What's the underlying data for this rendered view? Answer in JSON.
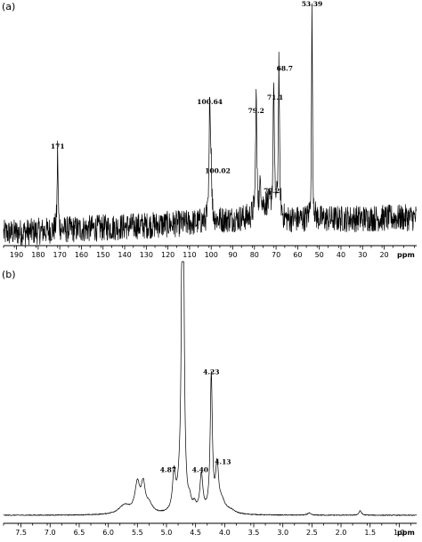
{
  "chart_data": [
    {
      "type": "line",
      "panel_label": "(a)",
      "xlabel": "ppm",
      "x_reversed": true,
      "xlim": [
        196,
        5
      ],
      "ylim": [
        0,
        100
      ],
      "x_ticks": [
        190,
        180,
        170,
        160,
        150,
        140,
        130,
        120,
        110,
        100,
        90,
        80,
        70,
        60,
        50,
        40,
        30,
        20
      ],
      "baseline": 4,
      "noise": 6,
      "drift": [
        {
          "x": 196,
          "y": 0
        },
        {
          "x": 110,
          "y": 4.5
        },
        {
          "x": 82,
          "y": 7
        },
        {
          "x": 74,
          "y": 13
        },
        {
          "x": 66,
          "y": 6
        },
        {
          "x": 5,
          "y": 7
        }
      ],
      "series": [
        {
          "peaks": [
            {
              "x": 171,
              "height": 37,
              "width": 0.25
            },
            {
              "x": 100.64,
              "height": 57,
              "width": 0.3
            },
            {
              "x": 100.02,
              "height": 24,
              "width": 0.3
            },
            {
              "x": 79.2,
              "height": 54,
              "width": 0.3
            },
            {
              "x": 77.2,
              "height": 12,
              "width": 0.4
            },
            {
              "x": 71.1,
              "height": 58,
              "width": 0.3
            },
            {
              "x": 68.7,
              "height": 69,
              "width": 0.3
            },
            {
              "x": 53.39,
              "height": 98,
              "width": 0.25
            }
          ]
        }
      ],
      "annotations": [
        {
          "text": "171",
          "x": 171,
          "y": 42
        },
        {
          "text": "100.64",
          "x": 100.64,
          "y": 62
        },
        {
          "text": "100.02",
          "x": 97,
          "y": 31
        },
        {
          "text": "79.2",
          "x": 79.2,
          "y": 58
        },
        {
          "text": "77.2",
          "x": 72,
          "y": 22
        },
        {
          "text": "71.1",
          "x": 70.4,
          "y": 64
        },
        {
          "text": "68.7",
          "x": 66,
          "y": 77
        },
        {
          "text": "53.39",
          "x": 53.39,
          "y": 106
        }
      ]
    },
    {
      "type": "line",
      "panel_label": "(b)",
      "xlabel": "ppm",
      "x_reversed": true,
      "xlim": [
        7.8,
        0.7
      ],
      "ylim": [
        0,
        100
      ],
      "x_ticks": [
        7.5,
        7.0,
        6.5,
        6.0,
        5.5,
        5.0,
        4.5,
        4.0,
        3.5,
        3.0,
        2.5,
        2.0,
        1.5,
        1.0
      ],
      "baseline": 2,
      "noise": 0.2,
      "series": [
        {
          "peaks": [
            {
              "x": 5.72,
              "height": 4,
              "width": 0.12
            },
            {
              "x": 5.5,
              "height": 13,
              "width": 0.05
            },
            {
              "x": 5.4,
              "height": 12,
              "width": 0.04
            },
            {
              "x": 5.3,
              "height": 4,
              "width": 0.07
            },
            {
              "x": 4.87,
              "height": 17,
              "width": 0.03
            },
            {
              "x": 4.78,
              "height": 6,
              "width": 0.04
            },
            {
              "x": 4.72,
              "height": 260,
              "width": 0.018
            },
            {
              "x": 4.6,
              "height": 4,
              "width": 0.03
            },
            {
              "x": 4.52,
              "height": 3,
              "width": 0.03
            },
            {
              "x": 4.4,
              "height": 17,
              "width": 0.03
            },
            {
              "x": 4.23,
              "height": 61,
              "width": 0.022
            },
            {
              "x": 4.13,
              "height": 20,
              "width": 0.03
            },
            {
              "x": 4.05,
              "height": 5,
              "width": 0.07
            },
            {
              "x": 3.9,
              "height": 1.5,
              "width": 0.1
            },
            {
              "x": 2.55,
              "height": 1,
              "width": 0.03
            },
            {
              "x": 1.67,
              "height": 2,
              "width": 0.025
            }
          ]
        }
      ],
      "annotations": [
        {
          "text": "4.87",
          "x": 4.97,
          "y": 21.5
        },
        {
          "text": "4.40",
          "x": 4.42,
          "y": 21.5
        },
        {
          "text": "4.13",
          "x": 4.03,
          "y": 25
        },
        {
          "text": "4.23",
          "x": 4.23,
          "y": 65.5
        }
      ]
    }
  ]
}
